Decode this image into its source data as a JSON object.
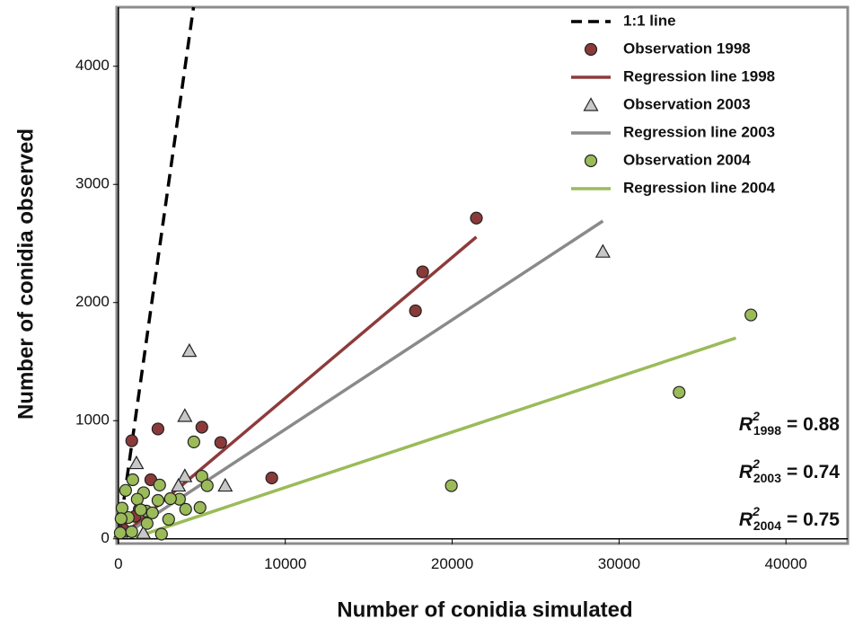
{
  "chart_data": {
    "type": "scatter",
    "x_label": "Number of conidia simulated",
    "y_label": "Number of conidia observed",
    "xlim": [
      -100,
      43700
    ],
    "ylim": [
      -40,
      4500
    ],
    "xticks": [
      0,
      10000,
      20000,
      30000,
      40000
    ],
    "yticks": [
      0,
      1000,
      2000,
      3000,
      4000
    ],
    "legend": "top-right",
    "series": [
      {
        "name": "1:1 line",
        "kind": "line",
        "dashed": true,
        "color": "#000000",
        "x": [
          0,
          4500
        ],
        "values": [
          0,
          4500
        ]
      },
      {
        "name": "Observation 1998",
        "kind": "points",
        "marker": "circle",
        "color": "#8b3a3a",
        "x": [
          800,
          2370,
          1940,
          1250,
          5000,
          6130,
          9190,
          17800,
          18230,
          21450,
          300,
          1000
        ],
        "values": [
          830,
          930,
          500,
          250,
          945,
          815,
          515,
          1930,
          2260,
          2715,
          80,
          190
        ]
      },
      {
        "name": "Regression line 1998",
        "kind": "line",
        "color": "#8e3b3b",
        "x": [
          500,
          21450
        ],
        "values": [
          60,
          2555
        ]
      },
      {
        "name": "Observation 2003",
        "kind": "points",
        "marker": "triangle",
        "color": "#c8c8c8",
        "x": [
          4250,
          3980,
          3980,
          3600,
          6400,
          1080,
          29030,
          270,
          150,
          1500
        ],
        "values": [
          1590,
          1040,
          530,
          450,
          450,
          640,
          2430,
          240,
          60,
          50
        ]
      },
      {
        "name": "Regression line 2003",
        "kind": "line",
        "color": "#8a8a8a",
        "x": [
          500,
          29030
        ],
        "values": [
          47,
          2690
        ]
      },
      {
        "name": "Observation 2004",
        "kind": "points",
        "marker": "circle",
        "color": "#9bbb59",
        "x": [
          37900,
          33600,
          19950,
          4520,
          5000,
          5320,
          4890,
          4030,
          3660,
          2470,
          2370,
          3120,
          3010,
          2580,
          1720,
          1670,
          1510,
          1130,
          860,
          430,
          590,
          220,
          160,
          110,
          1340,
          2040,
          800
        ],
        "values": [
          1895,
          1240,
          450,
          820,
          530,
          450,
          265,
          250,
          335,
          455,
          325,
          340,
          165,
          40,
          130,
          235,
          390,
          335,
          500,
          410,
          180,
          260,
          170,
          50,
          245,
          220,
          60
        ]
      },
      {
        "name": "Regression line 2004",
        "kind": "line",
        "color": "#9bbb59",
        "x": [
          1000,
          37000
        ],
        "values": [
          13,
          1700
        ]
      }
    ],
    "annotations": [
      {
        "symbol": "R",
        "sup": "2",
        "sub": "1998",
        "text": "= 0.88"
      },
      {
        "symbol": "R",
        "sup": "2",
        "sub": "2003",
        "text": "= 0.74"
      },
      {
        "symbol": "R",
        "sup": "2",
        "sub": "2004",
        "text": "= 0.75"
      }
    ]
  }
}
